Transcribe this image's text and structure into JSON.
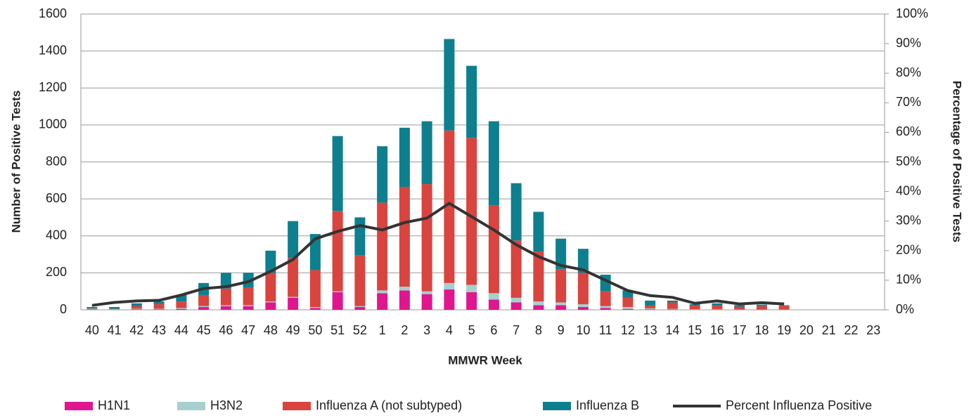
{
  "chart_data": {
    "type": "bar-line",
    "y_label": "Number of Positive Tests",
    "y2_label": "Percentage of Positive Tests",
    "x_label": "MMWR Week",
    "categories": [
      "40",
      "41",
      "42",
      "43",
      "44",
      "45",
      "46",
      "47",
      "48",
      "49",
      "50",
      "51",
      "52",
      "1",
      "2",
      "3",
      "4",
      "5",
      "6",
      "7",
      "8",
      "9",
      "10",
      "11",
      "12",
      "13",
      "14",
      "15",
      "16",
      "17",
      "18",
      "19",
      "20",
      "21",
      "22",
      "23"
    ],
    "ylim": [
      0,
      1600
    ],
    "yticks": [
      0,
      200,
      400,
      600,
      800,
      1000,
      1200,
      1400,
      1600
    ],
    "y2lim": [
      0,
      100
    ],
    "y2ticks": [
      {
        "value": 0,
        "label": "0%"
      },
      {
        "value": 10,
        "label": "10%"
      },
      {
        "value": 20,
        "label": "20%"
      },
      {
        "value": 30,
        "label": "30%"
      },
      {
        "value": 40,
        "label": "40%"
      },
      {
        "value": 50,
        "label": "50%"
      },
      {
        "value": 60,
        "label": "60%"
      },
      {
        "value": 70,
        "label": "70%"
      },
      {
        "value": 80,
        "label": "80%"
      },
      {
        "value": 90,
        "label": "90%"
      },
      {
        "value": 100,
        "label": "100%"
      }
    ],
    "grid": true,
    "series": [
      {
        "name": "H1N1",
        "color": "#e0168f",
        "type": "bar",
        "values": [
          2,
          1,
          3,
          3,
          5,
          15,
          20,
          20,
          40,
          65,
          10,
          95,
          15,
          90,
          105,
          85,
          110,
          95,
          55,
          40,
          25,
          25,
          15,
          10,
          5,
          3,
          2,
          1,
          1,
          1,
          1,
          1,
          null,
          null,
          null,
          null
        ]
      },
      {
        "name": "H3N2",
        "color": "#a7cfcf",
        "type": "bar",
        "values": [
          3,
          2,
          3,
          3,
          5,
          5,
          5,
          5,
          5,
          5,
          5,
          5,
          5,
          15,
          20,
          15,
          35,
          40,
          35,
          25,
          20,
          15,
          15,
          10,
          10,
          5,
          3,
          2,
          2,
          1,
          1,
          1,
          null,
          null,
          null,
          null
        ]
      },
      {
        "name": "Influenza A (not subtyped)",
        "color": "#d9443f",
        "type": "bar",
        "values": [
          2,
          2,
          15,
          25,
          35,
          60,
          90,
          95,
          155,
          210,
          200,
          435,
          275,
          475,
          540,
          580,
          825,
          795,
          475,
          310,
          270,
          180,
          170,
          80,
          50,
          15,
          35,
          20,
          20,
          15,
          18,
          20,
          null,
          null,
          null,
          null
        ]
      },
      {
        "name": "Influenza B",
        "color": "#0e7f8e",
        "type": "bar",
        "values": [
          8,
          10,
          14,
          14,
          35,
          65,
          85,
          80,
          120,
          200,
          195,
          405,
          205,
          305,
          320,
          340,
          495,
          390,
          455,
          310,
          215,
          165,
          130,
          90,
          40,
          27,
          10,
          7,
          12,
          8,
          8,
          3,
          null,
          null,
          null,
          null
        ]
      },
      {
        "name": "Percent Influenza Positive",
        "color": "#333333",
        "type": "line",
        "axis": "y2",
        "values": [
          1.5,
          2.5,
          3,
          3.2,
          5,
          7.2,
          7.8,
          9.5,
          13,
          17,
          24,
          26.5,
          28.5,
          27,
          29.5,
          31,
          36,
          31.5,
          27,
          22,
          18,
          15,
          13.5,
          10,
          6.5,
          4.8,
          4.2,
          2.2,
          3,
          2,
          2.4,
          2,
          null,
          null,
          null,
          null
        ]
      }
    ]
  }
}
